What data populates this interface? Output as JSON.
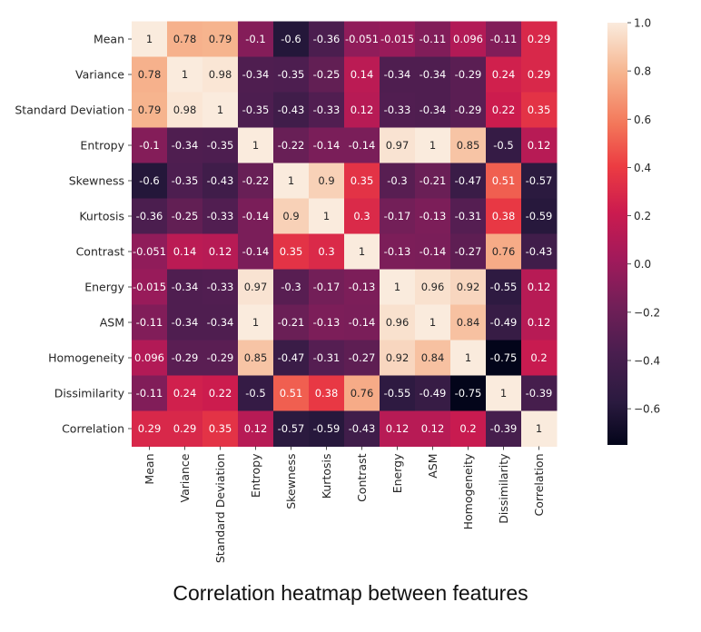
{
  "caption": "Correlation heatmap between features",
  "chart_data": {
    "type": "heatmap",
    "title": "",
    "xlabel": "",
    "ylabel": "",
    "labels": [
      "Mean",
      "Variance",
      "Standard Deviation",
      "Entropy",
      "Skewness",
      "Kurtosis",
      "Contrast",
      "Energy",
      "ASM",
      "Homogeneity",
      "Dissimilarity",
      "Correlation"
    ],
    "matrix": [
      [
        1,
        0.78,
        0.79,
        -0.1,
        -0.6,
        -0.36,
        -0.051,
        -0.015,
        -0.11,
        0.096,
        -0.11,
        0.29
      ],
      [
        0.78,
        1,
        0.98,
        -0.34,
        -0.35,
        -0.25,
        0.14,
        -0.34,
        -0.34,
        -0.29,
        0.24,
        0.29
      ],
      [
        0.79,
        0.98,
        1,
        -0.35,
        -0.43,
        -0.33,
        0.12,
        -0.33,
        -0.34,
        -0.29,
        0.22,
        0.35
      ],
      [
        -0.1,
        -0.34,
        -0.35,
        1,
        -0.22,
        -0.14,
        -0.14,
        0.97,
        1,
        0.85,
        -0.5,
        0.12
      ],
      [
        -0.6,
        -0.35,
        -0.43,
        -0.22,
        1,
        0.9,
        0.35,
        -0.3,
        -0.21,
        -0.47,
        0.51,
        -0.57
      ],
      [
        -0.36,
        -0.25,
        -0.33,
        -0.14,
        0.9,
        1,
        0.3,
        -0.17,
        -0.13,
        -0.31,
        0.38,
        -0.59
      ],
      [
        -0.051,
        0.14,
        0.12,
        -0.14,
        0.35,
        0.3,
        1,
        -0.13,
        -0.14,
        -0.27,
        0.76,
        -0.43
      ],
      [
        -0.015,
        -0.34,
        -0.33,
        0.97,
        -0.3,
        -0.17,
        -0.13,
        1,
        0.96,
        0.92,
        -0.55,
        0.12
      ],
      [
        -0.11,
        -0.34,
        -0.34,
        1,
        -0.21,
        -0.13,
        -0.14,
        0.96,
        1,
        0.84,
        -0.49,
        0.12
      ],
      [
        0.096,
        -0.29,
        -0.29,
        0.85,
        -0.47,
        -0.31,
        -0.27,
        0.92,
        0.84,
        1,
        -0.75,
        0.2
      ],
      [
        -0.11,
        0.24,
        0.22,
        -0.5,
        0.51,
        0.38,
        0.76,
        -0.55,
        -0.49,
        -0.75,
        1,
        -0.39
      ],
      [
        0.29,
        0.29,
        0.35,
        0.12,
        -0.57,
        -0.59,
        -0.43,
        0.12,
        0.12,
        0.2,
        -0.39,
        1
      ]
    ],
    "color_range": [
      -0.75,
      1
    ],
    "colorbar_ticks": [
      1.0,
      0.8,
      0.6,
      0.4,
      0.2,
      0.0,
      -0.2,
      -0.4,
      -0.6
    ],
    "colorbar_tick_labels": [
      "1.0",
      "0.8",
      "0.6",
      "0.4",
      "0.2",
      "0.0",
      "−0.2",
      "−0.4",
      "−0.6"
    ],
    "colormap": "rocket",
    "annotations": true
  }
}
